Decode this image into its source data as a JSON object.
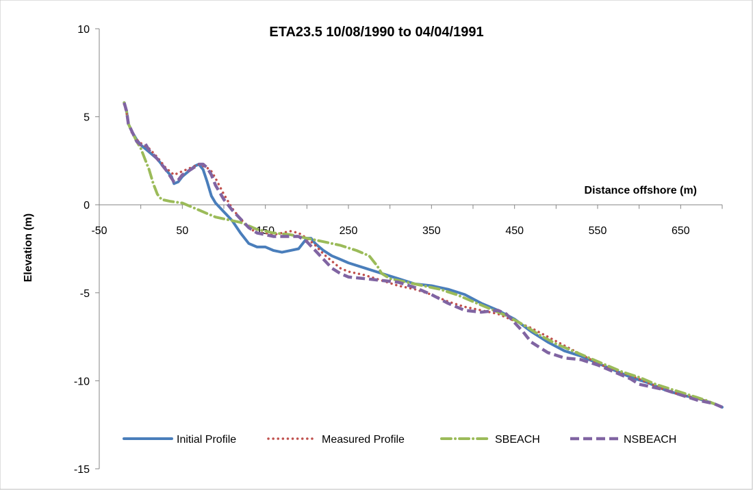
{
  "chart_data": {
    "type": "line",
    "title": "ETA23.5 10/08/1990 to 04/04/1991",
    "xlabel": "Distance offshore (m)",
    "ylabel": "Elevation (m)",
    "xlim": [
      -50,
      700
    ],
    "ylim": [
      -15,
      10
    ],
    "x_ticks": [
      "-50",
      "50",
      "150",
      "250",
      "350",
      "450",
      "550",
      "650"
    ],
    "y_ticks": [
      "10",
      "5",
      "0",
      "-5",
      "-10",
      "-15"
    ],
    "grid": false,
    "legend_position": "bottom",
    "series": [
      {
        "name": "Initial Profile",
        "color": "#4a7ebb",
        "style": "solid",
        "points": [
          [
            -20,
            5.8
          ],
          [
            -17,
            5.3
          ],
          [
            -15,
            4.6
          ],
          [
            -10,
            4.1
          ],
          [
            -5,
            3.7
          ],
          [
            0,
            3.4
          ],
          [
            10,
            3.0
          ],
          [
            20,
            2.6
          ],
          [
            30,
            2.0
          ],
          [
            37,
            1.6
          ],
          [
            40,
            1.2
          ],
          [
            45,
            1.3
          ],
          [
            50,
            1.6
          ],
          [
            55,
            1.8
          ],
          [
            60,
            2.0
          ],
          [
            65,
            2.2
          ],
          [
            70,
            2.3
          ],
          [
            75,
            2.0
          ],
          [
            80,
            1.3
          ],
          [
            85,
            0.5
          ],
          [
            90,
            0.1
          ],
          [
            100,
            -0.4
          ],
          [
            110,
            -0.9
          ],
          [
            120,
            -1.6
          ],
          [
            130,
            -2.2
          ],
          [
            140,
            -2.4
          ],
          [
            150,
            -2.4
          ],
          [
            160,
            -2.6
          ],
          [
            170,
            -2.7
          ],
          [
            180,
            -2.6
          ],
          [
            190,
            -2.5
          ],
          [
            195,
            -2.2
          ],
          [
            200,
            -1.9
          ],
          [
            205,
            -1.9
          ],
          [
            210,
            -2.2
          ],
          [
            220,
            -2.6
          ],
          [
            230,
            -2.9
          ],
          [
            240,
            -3.1
          ],
          [
            250,
            -3.3
          ],
          [
            270,
            -3.6
          ],
          [
            290,
            -3.9
          ],
          [
            310,
            -4.2
          ],
          [
            330,
            -4.5
          ],
          [
            350,
            -4.6
          ],
          [
            370,
            -4.8
          ],
          [
            390,
            -5.1
          ],
          [
            410,
            -5.6
          ],
          [
            430,
            -6.0
          ],
          [
            450,
            -6.5
          ],
          [
            470,
            -7.2
          ],
          [
            490,
            -7.8
          ],
          [
            510,
            -8.3
          ],
          [
            530,
            -8.6
          ],
          [
            550,
            -9.0
          ],
          [
            570,
            -9.4
          ],
          [
            590,
            -9.8
          ],
          [
            610,
            -10.1
          ],
          [
            630,
            -10.5
          ],
          [
            650,
            -10.8
          ],
          [
            670,
            -11.0
          ],
          [
            690,
            -11.3
          ],
          [
            700,
            -11.5
          ]
        ]
      },
      {
        "name": "Measured Profile",
        "color": "#c0504d",
        "style": "dotted",
        "points": [
          [
            -20,
            5.7
          ],
          [
            -17,
            5.2
          ],
          [
            -15,
            4.6
          ],
          [
            -10,
            4.0
          ],
          [
            -5,
            3.7
          ],
          [
            0,
            3.5
          ],
          [
            10,
            3.2
          ],
          [
            20,
            2.7
          ],
          [
            30,
            2.1
          ],
          [
            40,
            1.7
          ],
          [
            50,
            1.9
          ],
          [
            60,
            2.1
          ],
          [
            70,
            2.3
          ],
          [
            80,
            2.1
          ],
          [
            85,
            1.9
          ],
          [
            90,
            1.5
          ],
          [
            100,
            0.6
          ],
          [
            110,
            -0.2
          ],
          [
            120,
            -0.8
          ],
          [
            130,
            -1.3
          ],
          [
            140,
            -1.6
          ],
          [
            150,
            -1.6
          ],
          [
            160,
            -1.7
          ],
          [
            170,
            -1.6
          ],
          [
            180,
            -1.5
          ],
          [
            190,
            -1.6
          ],
          [
            200,
            -1.9
          ],
          [
            210,
            -2.3
          ],
          [
            220,
            -2.8
          ],
          [
            230,
            -3.2
          ],
          [
            240,
            -3.6
          ],
          [
            250,
            -3.8
          ],
          [
            270,
            -4.0
          ],
          [
            290,
            -4.3
          ],
          [
            310,
            -4.6
          ],
          [
            330,
            -4.8
          ],
          [
            350,
            -5.1
          ],
          [
            370,
            -5.5
          ],
          [
            390,
            -5.8
          ],
          [
            410,
            -6.0
          ],
          [
            430,
            -6.2
          ],
          [
            450,
            -6.6
          ],
          [
            470,
            -7.0
          ],
          [
            490,
            -7.5
          ],
          [
            510,
            -8.0
          ],
          [
            530,
            -8.5
          ],
          [
            550,
            -9.0
          ],
          [
            570,
            -9.4
          ],
          [
            590,
            -9.7
          ],
          [
            610,
            -10.1
          ],
          [
            630,
            -10.5
          ],
          [
            650,
            -10.8
          ],
          [
            670,
            -11.0
          ],
          [
            690,
            -11.3
          ],
          [
            700,
            -11.5
          ]
        ]
      },
      {
        "name": "SBEACH",
        "color": "#9bbb59",
        "style": "dashdot",
        "points": [
          [
            -20,
            5.8
          ],
          [
            -17,
            5.3
          ],
          [
            -15,
            4.6
          ],
          [
            -10,
            4.1
          ],
          [
            -5,
            3.6
          ],
          [
            0,
            3.2
          ],
          [
            5,
            2.6
          ],
          [
            10,
            2.0
          ],
          [
            15,
            1.2
          ],
          [
            20,
            0.6
          ],
          [
            25,
            0.3
          ],
          [
            35,
            0.2
          ],
          [
            50,
            0.1
          ],
          [
            60,
            -0.1
          ],
          [
            70,
            -0.3
          ],
          [
            80,
            -0.5
          ],
          [
            90,
            -0.7
          ],
          [
            100,
            -0.8
          ],
          [
            120,
            -1.0
          ],
          [
            140,
            -1.4
          ],
          [
            160,
            -1.6
          ],
          [
            180,
            -1.7
          ],
          [
            200,
            -1.9
          ],
          [
            220,
            -2.1
          ],
          [
            240,
            -2.3
          ],
          [
            260,
            -2.6
          ],
          [
            275,
            -2.9
          ],
          [
            285,
            -3.5
          ],
          [
            290,
            -3.9
          ],
          [
            300,
            -4.2
          ],
          [
            320,
            -4.4
          ],
          [
            340,
            -4.6
          ],
          [
            360,
            -4.8
          ],
          [
            380,
            -5.1
          ],
          [
            400,
            -5.5
          ],
          [
            420,
            -5.9
          ],
          [
            440,
            -6.3
          ],
          [
            460,
            -6.8
          ],
          [
            480,
            -7.4
          ],
          [
            500,
            -7.9
          ],
          [
            520,
            -8.3
          ],
          [
            540,
            -8.7
          ],
          [
            560,
            -9.1
          ],
          [
            580,
            -9.5
          ],
          [
            600,
            -9.8
          ],
          [
            620,
            -10.2
          ],
          [
            640,
            -10.5
          ],
          [
            660,
            -10.8
          ],
          [
            680,
            -11.1
          ],
          [
            700,
            -11.5
          ]
        ]
      },
      {
        "name": "NSBEACH",
        "color": "#8064a2",
        "style": "dashed",
        "points": [
          [
            -20,
            5.8
          ],
          [
            -17,
            5.3
          ],
          [
            -15,
            4.6
          ],
          [
            -10,
            4.1
          ],
          [
            -5,
            3.6
          ],
          [
            0,
            3.4
          ],
          [
            5,
            3.5
          ],
          [
            10,
            3.1
          ],
          [
            20,
            2.6
          ],
          [
            30,
            2.0
          ],
          [
            40,
            1.3
          ],
          [
            45,
            1.4
          ],
          [
            50,
            1.7
          ],
          [
            60,
            2.0
          ],
          [
            70,
            2.3
          ],
          [
            75,
            2.3
          ],
          [
            80,
            2.1
          ],
          [
            85,
            1.7
          ],
          [
            90,
            1.1
          ],
          [
            100,
            0.3
          ],
          [
            110,
            -0.3
          ],
          [
            120,
            -0.8
          ],
          [
            130,
            -1.3
          ],
          [
            140,
            -1.6
          ],
          [
            150,
            -1.7
          ],
          [
            160,
            -1.8
          ],
          [
            170,
            -1.8
          ],
          [
            180,
            -1.8
          ],
          [
            190,
            -1.8
          ],
          [
            200,
            -2.1
          ],
          [
            210,
            -2.6
          ],
          [
            220,
            -3.1
          ],
          [
            230,
            -3.6
          ],
          [
            240,
            -3.9
          ],
          [
            250,
            -4.1
          ],
          [
            270,
            -4.2
          ],
          [
            290,
            -4.3
          ],
          [
            310,
            -4.4
          ],
          [
            330,
            -4.7
          ],
          [
            350,
            -5.1
          ],
          [
            370,
            -5.6
          ],
          [
            390,
            -6.0
          ],
          [
            410,
            -6.1
          ],
          [
            430,
            -6.0
          ],
          [
            440,
            -6.2
          ],
          [
            450,
            -6.7
          ],
          [
            460,
            -7.2
          ],
          [
            470,
            -7.8
          ],
          [
            490,
            -8.4
          ],
          [
            510,
            -8.7
          ],
          [
            530,
            -8.8
          ],
          [
            550,
            -9.1
          ],
          [
            570,
            -9.5
          ],
          [
            590,
            -9.9
          ],
          [
            600,
            -10.2
          ],
          [
            610,
            -10.3
          ],
          [
            630,
            -10.5
          ],
          [
            650,
            -10.8
          ],
          [
            670,
            -11.1
          ],
          [
            690,
            -11.3
          ],
          [
            700,
            -11.5
          ]
        ]
      }
    ]
  }
}
